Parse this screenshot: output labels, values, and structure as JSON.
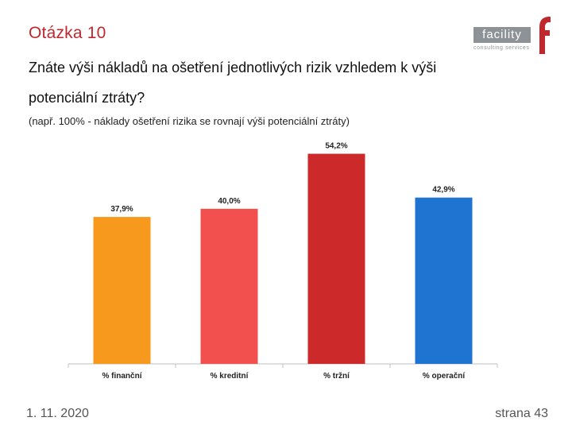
{
  "slide": {
    "title": "Otázka 10",
    "question": "Znáte výši nákladů na ošetření jednotlivých rizik vzhledem k výši potenciální ztráty?",
    "note": "(např. 100% - náklady ošetření rizika se rovnají výši potenciální ztráty)"
  },
  "logo": {
    "word": "facility",
    "tagline": "consulting services",
    "brand_color": "#c0282e",
    "grey": "#8c9296"
  },
  "footer": {
    "date": "1. 11. 2020",
    "page": "strana 43"
  },
  "chart_data": {
    "type": "bar",
    "title": "",
    "xlabel": "",
    "ylabel": "",
    "ylim": [
      0,
      58
    ],
    "categories": [
      "% finanční",
      "% kreditní",
      "% tržní",
      "% operační"
    ],
    "values": [
      37.9,
      40.0,
      54.2,
      42.9
    ],
    "labels": [
      "37,9%",
      "40,0%",
      "54,2%",
      "42,9%"
    ],
    "colors": [
      "#f7991c",
      "#f24f4f",
      "#cc2a2a",
      "#1f73d1"
    ]
  }
}
